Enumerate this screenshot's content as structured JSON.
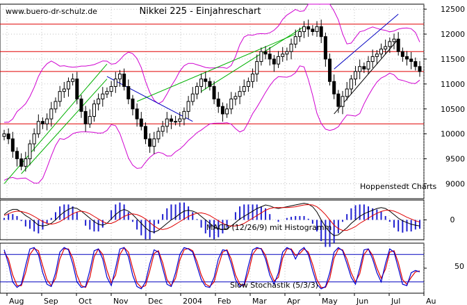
{
  "chart_data": {
    "type": "candlestick",
    "title": "Nikkei 225 - Einjahreschart",
    "watermark": "www.buero-dr-schulz.de",
    "source": "Hoppenstedt Charts",
    "price_ylim": [
      8700,
      12600
    ],
    "price_ticks": [
      9000,
      9500,
      10000,
      10500,
      11000,
      11500,
      12000,
      12500
    ],
    "months": [
      "Aug",
      "Sep",
      "Oct",
      "Nov",
      "Dec",
      "2004",
      "Feb",
      "Mar",
      "Apr",
      "May",
      "Jun",
      "Jul",
      "Au"
    ],
    "horizontal_lines": [
      12200,
      11650,
      11250,
      10200
    ],
    "close": [
      10000,
      9900,
      9650,
      9500,
      9350,
      9500,
      9800,
      10000,
      10250,
      10200,
      10300,
      10500,
      10650,
      10850,
      10900,
      11050,
      11100,
      10700,
      10450,
      10200,
      10350,
      10600,
      10700,
      10800,
      10850,
      10950,
      11100,
      11200,
      10950,
      10700,
      10500,
      10300,
      10150,
      9900,
      9750,
      9900,
      10050,
      10150,
      10300,
      10250,
      10250,
      10300,
      10450,
      10650,
      10800,
      10950,
      11100,
      11050,
      10950,
      10700,
      10550,
      10400,
      10500,
      10700,
      10750,
      10850,
      10950,
      11050,
      11200,
      11450,
      11650,
      11600,
      11500,
      11400,
      11550,
      11600,
      11650,
      11800,
      11950,
      12050,
      12150,
      12100,
      12050,
      12150,
      11950,
      11500,
      11050,
      10800,
      10550,
      10750,
      10900,
      11100,
      11250,
      11350,
      11300,
      11450,
      11550,
      11600,
      11700,
      11750,
      11850,
      11900,
      11650,
      11550,
      11500,
      11450,
      11350,
      11250
    ],
    "macd_label": "MACD (12/26/9) mit Histogramm",
    "macd_zero_label": "0",
    "macd_line": [
      0.3,
      0.5,
      0.6,
      0.6,
      0.45,
      0.25,
      0.1,
      -0.1,
      -0.3,
      -0.35,
      -0.3,
      -0.2,
      0,
      0.25,
      0.45,
      0.6,
      0.7,
      0.65,
      0.5,
      0.3,
      0.1,
      -0.1,
      -0.25,
      -0.3,
      -0.2,
      0.05,
      0.3,
      0.5,
      0.6,
      0.5,
      0.3,
      0.05,
      -0.2,
      -0.45,
      -0.65,
      -0.7,
      -0.6,
      -0.4,
      -0.2,
      0,
      0.15,
      0.35,
      0.5,
      0.55,
      0.5,
      0.4,
      0.2,
      0,
      -0.2,
      -0.4,
      -0.5,
      -0.55,
      -0.5,
      -0.35,
      -0.15,
      0.05,
      0.2,
      0.35,
      0.5,
      0.65,
      0.75,
      0.85,
      0.8,
      0.7,
      0.65,
      0.7,
      0.75,
      0.8,
      0.85,
      0.9,
      0.95,
      0.9,
      0.75,
      0.45,
      0,
      -0.4,
      -0.7,
      -0.9,
      -0.85,
      -0.65,
      -0.45,
      -0.2,
      0,
      0.2,
      0.35,
      0.45,
      0.55,
      0.65,
      0.7,
      0.65,
      0.5,
      0.3,
      0.1,
      -0.05,
      -0.15,
      -0.25,
      -0.3,
      -0.35
    ],
    "macd_signal": [
      0.25,
      0.35,
      0.45,
      0.5,
      0.48,
      0.42,
      0.33,
      0.2,
      0.05,
      -0.1,
      -0.2,
      -0.25,
      -0.2,
      -0.1,
      0.05,
      0.2,
      0.35,
      0.45,
      0.5,
      0.45,
      0.35,
      0.2,
      0.05,
      -0.1,
      -0.2,
      -0.2,
      -0.1,
      0.05,
      0.2,
      0.3,
      0.35,
      0.3,
      0.2,
      0.05,
      -0.15,
      -0.35,
      -0.5,
      -0.55,
      -0.5,
      -0.4,
      -0.25,
      -0.1,
      0.05,
      0.2,
      0.3,
      0.38,
      0.4,
      0.35,
      0.25,
      0.1,
      -0.05,
      -0.2,
      -0.3,
      -0.35,
      -0.35,
      -0.3,
      -0.2,
      -0.05,
      0.1,
      0.25,
      0.4,
      0.55,
      0.65,
      0.7,
      0.7,
      0.7,
      0.7,
      0.72,
      0.75,
      0.8,
      0.85,
      0.87,
      0.85,
      0.75,
      0.55,
      0.3,
      0,
      -0.3,
      -0.5,
      -0.6,
      -0.6,
      -0.5,
      -0.38,
      -0.2,
      -0.05,
      0.1,
      0.25,
      0.38,
      0.48,
      0.55,
      0.55,
      0.5,
      0.4,
      0.28,
      0.15,
      0.05,
      -0.05,
      -0.12
    ],
    "stoch_label": "Slow Stochastik (5/3/3)",
    "stoch_tick": "50",
    "stoch_lines": [
      80,
      20
    ],
    "stoch_k": [
      90,
      60,
      20,
      8,
      15,
      55,
      92,
      95,
      80,
      40,
      15,
      10,
      40,
      85,
      95,
      90,
      60,
      20,
      8,
      10,
      45,
      88,
      92,
      70,
      30,
      12,
      50,
      92,
      95,
      75,
      35,
      10,
      5,
      20,
      60,
      90,
      85,
      50,
      15,
      10,
      40,
      80,
      95,
      92,
      85,
      55,
      25,
      10,
      8,
      30,
      70,
      90,
      88,
      60,
      25,
      10,
      15,
      55,
      90,
      95,
      92,
      70,
      35,
      15,
      40,
      85,
      95,
      90,
      70,
      88,
      95,
      80,
      45,
      15,
      5,
      10,
      40,
      85,
      95,
      88,
      60,
      30,
      15,
      50,
      90,
      92,
      70,
      40,
      20,
      60,
      92,
      85,
      50,
      15,
      12,
      40,
      45,
      42
    ],
    "stoch_d": [
      85,
      70,
      35,
      12,
      12,
      40,
      80,
      93,
      88,
      55,
      25,
      12,
      28,
      70,
      92,
      92,
      72,
      35,
      12,
      8,
      30,
      75,
      92,
      80,
      45,
      18,
      35,
      80,
      95,
      85,
      50,
      18,
      8,
      12,
      45,
      82,
      88,
      62,
      25,
      12,
      28,
      68,
      90,
      93,
      88,
      65,
      35,
      15,
      10,
      20,
      55,
      85,
      90,
      70,
      35,
      15,
      12,
      40,
      80,
      93,
      93,
      78,
      45,
      22,
      30,
      72,
      92,
      92,
      78,
      82,
      92,
      85,
      58,
      25,
      8,
      8,
      28,
      72,
      92,
      90,
      70,
      40,
      20,
      38,
      80,
      92,
      78,
      50,
      28,
      48,
      85,
      88,
      62,
      25,
      15,
      30,
      42,
      44
    ]
  }
}
